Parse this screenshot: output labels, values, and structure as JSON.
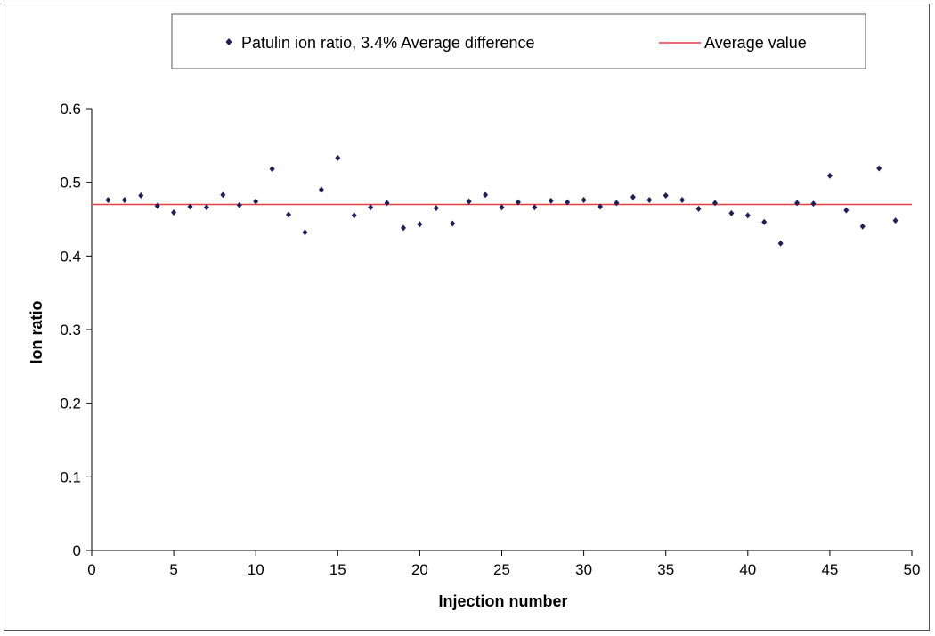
{
  "chart_data": {
    "type": "scatter",
    "xlabel": "Injection number",
    "ylabel": "Ion ratio",
    "xlim": [
      0,
      50
    ],
    "ylim": [
      0,
      0.6
    ],
    "x_ticks": [
      0,
      5,
      10,
      15,
      20,
      25,
      30,
      35,
      40,
      45,
      50
    ],
    "y_ticks": [
      0,
      0.1,
      0.2,
      0.3,
      0.4,
      0.5,
      0.6
    ],
    "x_tick_labels": [
      "0",
      "5",
      "10",
      "15",
      "20",
      "25",
      "30",
      "35",
      "40",
      "45",
      "50"
    ],
    "y_tick_labels": [
      "0",
      "0.1",
      "0.2",
      "0.3",
      "0.4",
      "0.5",
      "0.6"
    ],
    "grid": false,
    "legend_position": "top",
    "series": [
      {
        "name": "Patulin ion ratio, 3.4% Average difference",
        "marker": "diamond",
        "color": "#1f1f5c",
        "x": [
          1,
          2,
          3,
          4,
          5,
          6,
          7,
          8,
          9,
          10,
          11,
          12,
          13,
          14,
          15,
          16,
          17,
          18,
          19,
          20,
          21,
          22,
          23,
          24,
          25,
          26,
          27,
          28,
          29,
          30,
          31,
          32,
          33,
          34,
          35,
          36,
          37,
          38,
          39,
          40,
          41,
          42,
          43,
          44,
          45,
          46,
          47,
          48,
          49
        ],
        "y": [
          0.476,
          0.476,
          0.482,
          0.468,
          0.459,
          0.467,
          0.466,
          0.483,
          0.469,
          0.474,
          0.518,
          0.456,
          0.432,
          0.49,
          0.533,
          0.455,
          0.466,
          0.472,
          0.438,
          0.443,
          0.465,
          0.444,
          0.474,
          0.483,
          0.466,
          0.473,
          0.466,
          0.475,
          0.473,
          0.476,
          0.467,
          0.472,
          0.48,
          0.476,
          0.482,
          0.476,
          0.464,
          0.472,
          0.458,
          0.455,
          0.446,
          0.417,
          0.472,
          0.471,
          0.509,
          0.462,
          0.44,
          0.519,
          0.448
        ]
      },
      {
        "name": "Average value",
        "type": "line",
        "color": "#e04040",
        "x": [
          0,
          50
        ],
        "y": [
          0.47,
          0.47
        ]
      }
    ]
  }
}
